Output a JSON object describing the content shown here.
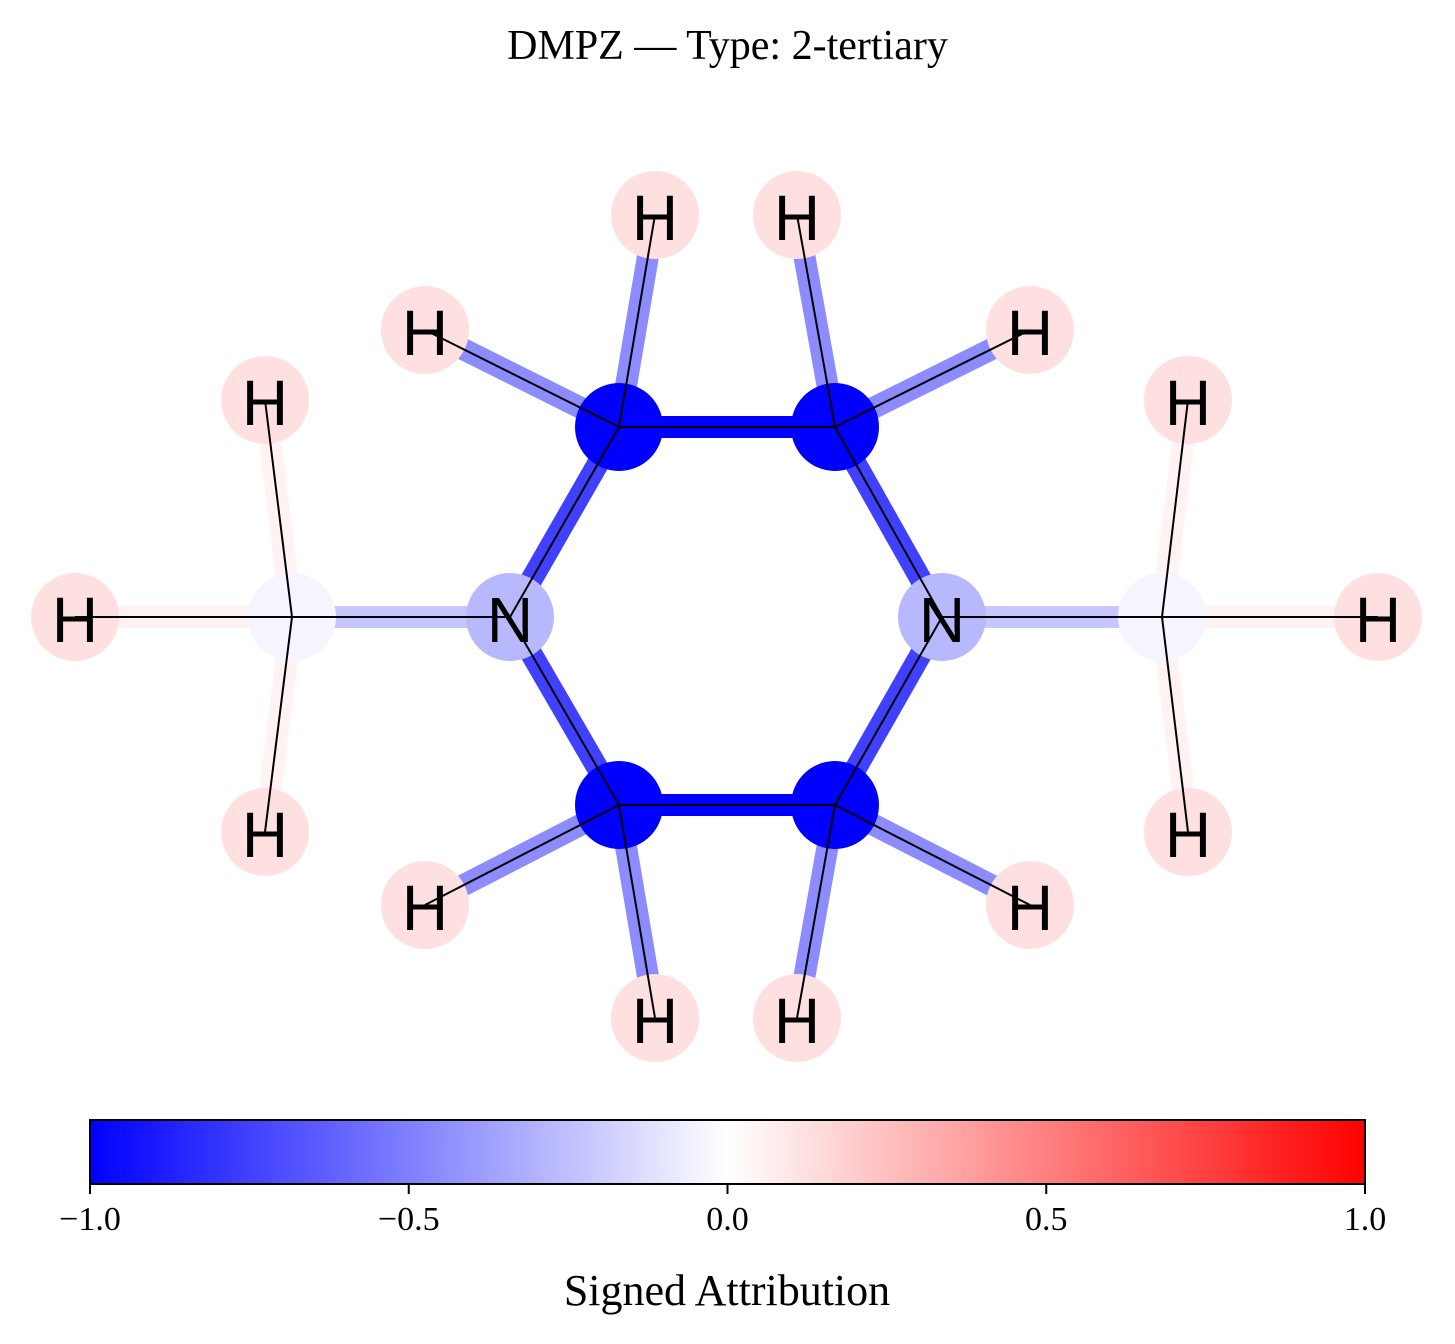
{
  "title": "DMPZ — Type: 2-tertiary",
  "molecule": {
    "atoms": [
      {
        "id": "N1",
        "element": "N",
        "show_label": true,
        "attribution": -0.28
      },
      {
        "id": "N2",
        "element": "N",
        "show_label": true,
        "attribution": -0.28
      },
      {
        "id": "C1",
        "element": "C",
        "show_label": false,
        "attribution": -1.0
      },
      {
        "id": "C2",
        "element": "C",
        "show_label": false,
        "attribution": -1.0
      },
      {
        "id": "C3",
        "element": "C",
        "show_label": false,
        "attribution": -1.0
      },
      {
        "id": "C4",
        "element": "C",
        "show_label": false,
        "attribution": -1.0
      },
      {
        "id": "CM1",
        "element": "C",
        "show_label": false,
        "attribution": -0.04
      },
      {
        "id": "CM2",
        "element": "C",
        "show_label": false,
        "attribution": -0.04
      },
      {
        "id": "H1",
        "element": "H",
        "show_label": true,
        "attribution": 0.12
      },
      {
        "id": "H2",
        "element": "H",
        "show_label": true,
        "attribution": 0.12
      },
      {
        "id": "H3",
        "element": "H",
        "show_label": true,
        "attribution": 0.12
      },
      {
        "id": "H4",
        "element": "H",
        "show_label": true,
        "attribution": 0.12
      },
      {
        "id": "H5",
        "element": "H",
        "show_label": true,
        "attribution": 0.12
      },
      {
        "id": "H6",
        "element": "H",
        "show_label": true,
        "attribution": 0.12
      },
      {
        "id": "H7",
        "element": "H",
        "show_label": true,
        "attribution": 0.12
      },
      {
        "id": "H8",
        "element": "H",
        "show_label": true,
        "attribution": 0.12
      },
      {
        "id": "H9",
        "element": "H",
        "show_label": true,
        "attribution": 0.12
      },
      {
        "id": "H10",
        "element": "H",
        "show_label": true,
        "attribution": 0.12
      },
      {
        "id": "H11",
        "element": "H",
        "show_label": true,
        "attribution": 0.12
      },
      {
        "id": "H12",
        "element": "H",
        "show_label": true,
        "attribution": 0.12
      },
      {
        "id": "H13",
        "element": "H",
        "show_label": true,
        "attribution": 0.12
      },
      {
        "id": "H14",
        "element": "H",
        "show_label": true,
        "attribution": 0.12
      }
    ],
    "bonds": [
      {
        "a": "C1",
        "b": "C2",
        "attribution": -1.0
      },
      {
        "a": "C3",
        "b": "C4",
        "attribution": -1.0
      },
      {
        "a": "C1",
        "b": "N1",
        "attribution": -0.75
      },
      {
        "a": "C2",
        "b": "N2",
        "attribution": -0.75
      },
      {
        "a": "C3",
        "b": "N1",
        "attribution": -0.75
      },
      {
        "a": "C4",
        "b": "N2",
        "attribution": -0.75
      },
      {
        "a": "N1",
        "b": "CM1",
        "attribution": -0.22
      },
      {
        "a": "N2",
        "b": "CM2",
        "attribution": -0.22
      },
      {
        "a": "C1",
        "b": "H1",
        "attribution": -0.45
      },
      {
        "a": "C1",
        "b": "H3",
        "attribution": -0.45
      },
      {
        "a": "C2",
        "b": "H2",
        "attribution": -0.45
      },
      {
        "a": "C2",
        "b": "H4",
        "attribution": -0.45
      },
      {
        "a": "C3",
        "b": "H9",
        "attribution": -0.45
      },
      {
        "a": "C3",
        "b": "H11",
        "attribution": -0.45
      },
      {
        "a": "C4",
        "b": "H10",
        "attribution": -0.45
      },
      {
        "a": "C4",
        "b": "H12",
        "attribution": -0.45
      },
      {
        "a": "CM1",
        "b": "H5",
        "attribution": 0.05
      },
      {
        "a": "CM1",
        "b": "H7",
        "attribution": 0.05
      },
      {
        "a": "CM1",
        "b": "H13",
        "attribution": 0.05
      },
      {
        "a": "CM2",
        "b": "H6",
        "attribution": 0.05
      },
      {
        "a": "CM2",
        "b": "H8",
        "attribution": 0.05
      },
      {
        "a": "CM2",
        "b": "H14",
        "attribution": 0.05
      }
    ]
  },
  "colorbar": {
    "label": "Signed Attribution",
    "min": -1.0,
    "max": 1.0,
    "ticks": [
      {
        "value": -1.0,
        "label": "−1.0"
      },
      {
        "value": -0.5,
        "label": "−0.5"
      },
      {
        "value": 0.0,
        "label": "0.0"
      },
      {
        "value": 0.5,
        "label": "0.5"
      },
      {
        "value": 1.0,
        "label": "1.0"
      }
    ],
    "colors": {
      "negative": "#0000ff",
      "zero": "#ffffff",
      "positive": "#ff0000"
    }
  }
}
